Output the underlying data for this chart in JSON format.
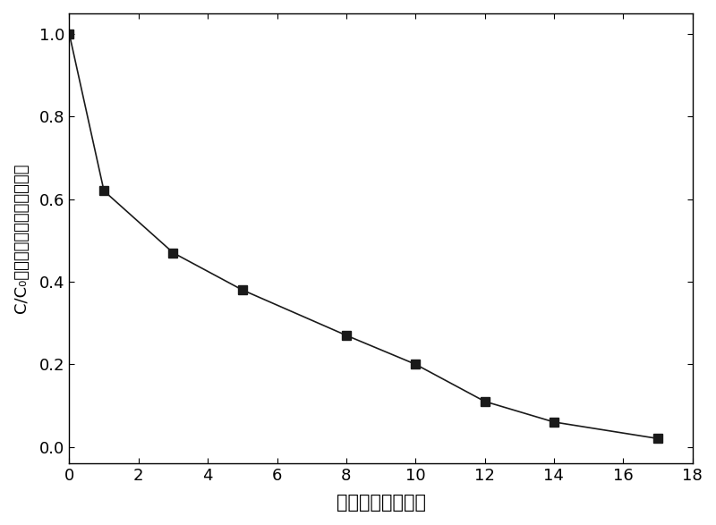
{
  "x": [
    0,
    1,
    3,
    5,
    8,
    10,
    12,
    14,
    17
  ],
  "y": [
    1.0,
    0.62,
    0.47,
    0.38,
    0.27,
    0.2,
    0.11,
    0.06,
    0.02
  ],
  "xlabel": "反应时间（分钟）",
  "ylabel_part1": "C/C",
  "ylabel_part2": "（当前浓度与初始浓度比）",
  "xlim": [
    0,
    18
  ],
  "ylim": [
    -0.04,
    1.05
  ],
  "xticks": [
    0,
    2,
    4,
    6,
    8,
    10,
    12,
    14,
    16,
    18
  ],
  "yticks": [
    0.0,
    0.2,
    0.4,
    0.6,
    0.8,
    1.0
  ],
  "line_color": "#1a1a1a",
  "marker_color": "#1a1a1a",
  "marker": "s",
  "marker_size": 7,
  "line_width": 1.2,
  "background_color": "#ffffff",
  "xlabel_fontsize": 15,
  "ylabel_fontsize": 13,
  "tick_fontsize": 13
}
